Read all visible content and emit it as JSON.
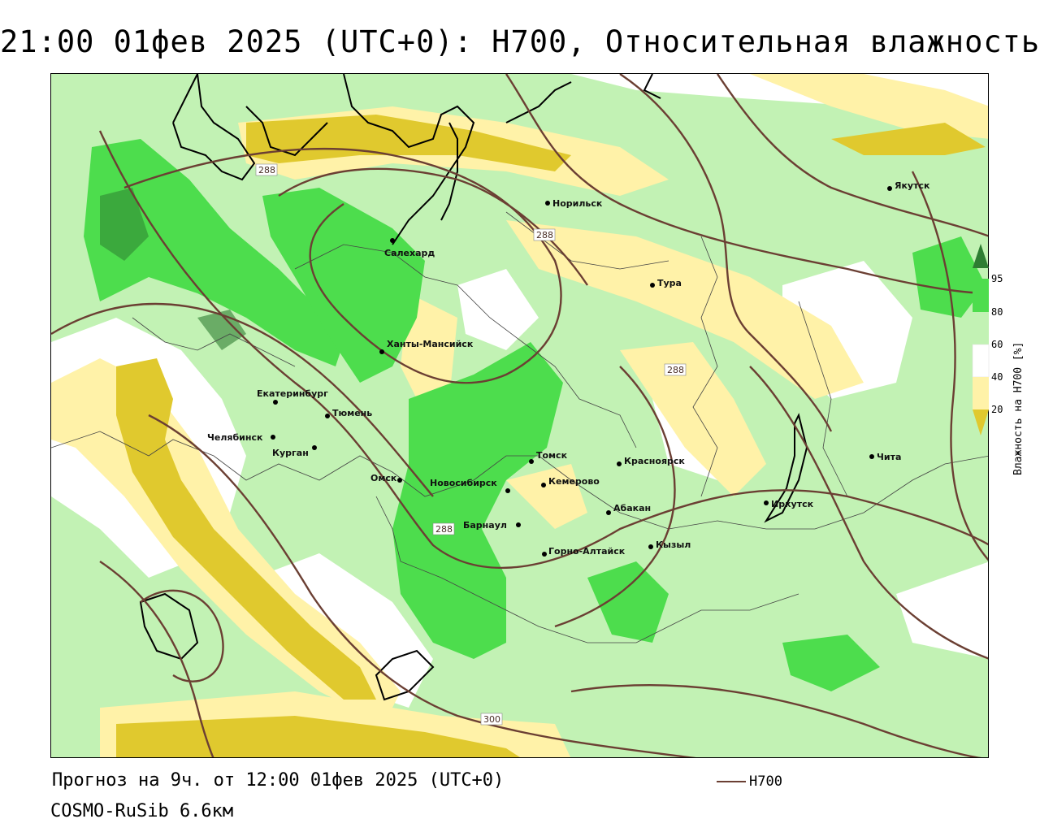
{
  "title": "21:00 01фев 2025 (UTC+0): H700, Относительная влажность",
  "footer": {
    "forecast": "Прогноз на 9ч. от 12:00 01фев 2025 (UTC+0)",
    "model": "COSMO-RuSib 6.6км",
    "isoline_legend": "H700"
  },
  "legend": {
    "title": "Влажность на H700 [%]",
    "ticks": [
      "95",
      "80",
      "60",
      "40",
      "20"
    ],
    "colors": {
      "over95": "#2e7d32",
      "80_95": "#4ddd4d",
      "60_80": "#c2f2b4",
      "40_60": "#ffffff",
      "20_40": "#fff2a8",
      "under20": "#e0c92e"
    }
  },
  "isoline_color": "#6b3f33",
  "isoline_labels": [
    "288",
    "288",
    "288",
    "288",
    "300"
  ],
  "cities": [
    {
      "name": "Норильск"
    },
    {
      "name": "Якутск"
    },
    {
      "name": "Салехард"
    },
    {
      "name": "Тура"
    },
    {
      "name": "Ханты-Мансийск"
    },
    {
      "name": "Екатеринбург"
    },
    {
      "name": "Тюмень"
    },
    {
      "name": "Челябинск"
    },
    {
      "name": "Курган"
    },
    {
      "name": "Омск"
    },
    {
      "name": "Новосибирск"
    },
    {
      "name": "Томск"
    },
    {
      "name": "Кемерово"
    },
    {
      "name": "Красноярск"
    },
    {
      "name": "Абакан"
    },
    {
      "name": "Барнаул"
    },
    {
      "name": "Горно-Алтайск"
    },
    {
      "name": "Кызыл"
    },
    {
      "name": "Иркутск"
    },
    {
      "name": "Чита"
    }
  ]
}
